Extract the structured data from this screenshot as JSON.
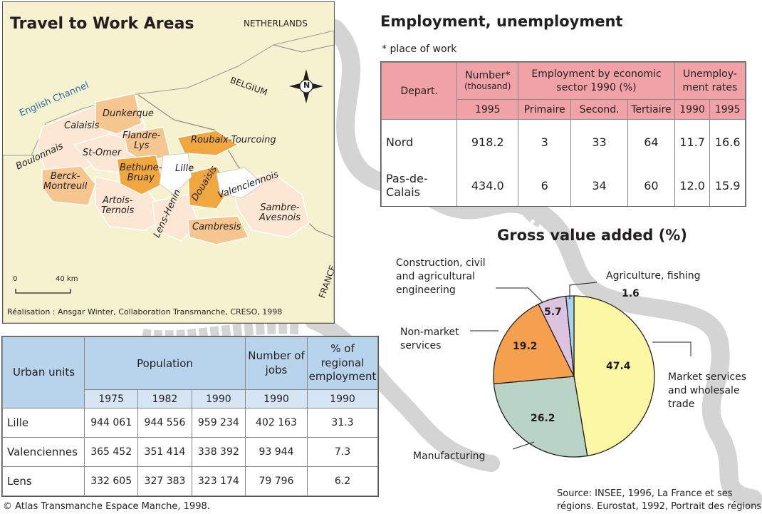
{
  "map": {
    "title": "Travel to Work Areas",
    "credit": "Réalisation : Ansgar Winter, Collaboration Transmanche, CRESO, 1998",
    "scale_label_start": "0",
    "scale_label_end": "40 km",
    "compass_letter": "N",
    "labels": {
      "netherlands": "NETHERLANDS",
      "belgium": "BELGIUM",
      "france": "FRANCE",
      "english_channel": "English Channel",
      "dunkerque": "Dunkerque",
      "calaisis": "Calaisis",
      "flandre_lys": "Flandre-\nLys",
      "roubaix_tourcoing": "Roubaix-Tourcoing",
      "boulonnais": "Boulonnais",
      "st_omer": "St-Omer",
      "lille": "Lille",
      "bethune_bruay": "Bethune-\nBruay",
      "berck_montreuil": "Berck-\nMontreuil",
      "douaisis": "Douaisis",
      "valenciennois": "Valenciennois",
      "artois_ternois": "Artois-\nTernois",
      "lens_henin": "Lens-Henin",
      "sambre_avesnois": "Sambre-\nAvesnois",
      "cambresis": "Cambresis"
    },
    "colors": {
      "land_background": "#f6f2cf",
      "sea": "#f6f2cf",
      "light_area": "#fbe7d3",
      "medium_area": "#f5c690",
      "dark_area": "#f1a740",
      "white_area": "#ffffff"
    }
  },
  "employment": {
    "title": "Employment, unemployment",
    "note": "* place of work",
    "headers": {
      "depart": "Depart.",
      "number": "Number*",
      "number_unit": "(thousand)",
      "sector": "Employment by economic sector 1990 (%)",
      "unemployment": "Unemploy-ment rates",
      "year_1995": "1995",
      "primaire": "Primaire",
      "second": "Second.",
      "tertiaire": "Tertiaire",
      "u1990": "1990",
      "u1995": "1995"
    },
    "rows": [
      {
        "depart": "Nord",
        "number": "918.2",
        "primaire": "3",
        "second": "33",
        "tertiaire": "64",
        "u1990": "11.7",
        "u1995": "16.6"
      },
      {
        "depart": "Pas-de-Calais",
        "number": "434.0",
        "primaire": "6",
        "second": "34",
        "tertiaire": "60",
        "u1990": "12.0",
        "u1995": "15.9"
      }
    ],
    "header_color": "#f1a2a6"
  },
  "population": {
    "headers": {
      "urban_units": "Urban units",
      "population": "Population",
      "number_of_jobs": "Number of jobs",
      "pct_regional": "% of regional employment",
      "y1975": "1975",
      "y1982": "1982",
      "y1990": "1990",
      "jobs_year": "1990",
      "pct_year": "1990"
    },
    "rows": [
      {
        "unit": "Lille",
        "p1975": "944 061",
        "p1982": "944 556",
        "p1990": "959 234",
        "jobs": "402 163",
        "pct": "31.3"
      },
      {
        "unit": "Valenciennes",
        "p1975": "365 452",
        "p1982": "351 414",
        "p1990": "338 392",
        "jobs": "93 944",
        "pct": "7.3"
      },
      {
        "unit": "Lens",
        "p1975": "332 605",
        "p1982": "327 383",
        "p1990": "323 174",
        "jobs": "79 796",
        "pct": "6.2"
      }
    ],
    "header_color": "#b8d3ec"
  },
  "chart_data": {
    "type": "pie",
    "title": "Gross value added (%)",
    "slices": [
      {
        "label": "Market services and wholesale trade",
        "value": 47.4,
        "color": "#fbf7a4"
      },
      {
        "label": "Manufacturing",
        "value": 26.2,
        "color": "#b9d4c6"
      },
      {
        "label": "Non-market services",
        "value": 19.2,
        "color": "#f4a04e"
      },
      {
        "label": "Construction, civil and agricultural engineering",
        "value": 5.7,
        "color": "#dcc4e0"
      },
      {
        "label": "Agriculture, fishing",
        "value": 1.6,
        "color": "#a9d3ea"
      }
    ],
    "value_labels": [
      "47.4",
      "26.2",
      "19.2",
      "5.7",
      "1.6"
    ]
  },
  "pie_labels": {
    "construction": "Construction, civil\nand agricultural\nengineering",
    "agriculture": "Agriculture, fishing",
    "non_market": "Non-market\nservices",
    "market": "Market services\nand wholesale\ntrade",
    "manufacturing": "Manufacturing"
  },
  "footer": {
    "copyright": "© Atlas Transmanche Espace Manche, 1998.",
    "source": "Source: INSEE, 1996, La France et ses\nrégions. Eurostat, 1992, Portrait des régions."
  }
}
